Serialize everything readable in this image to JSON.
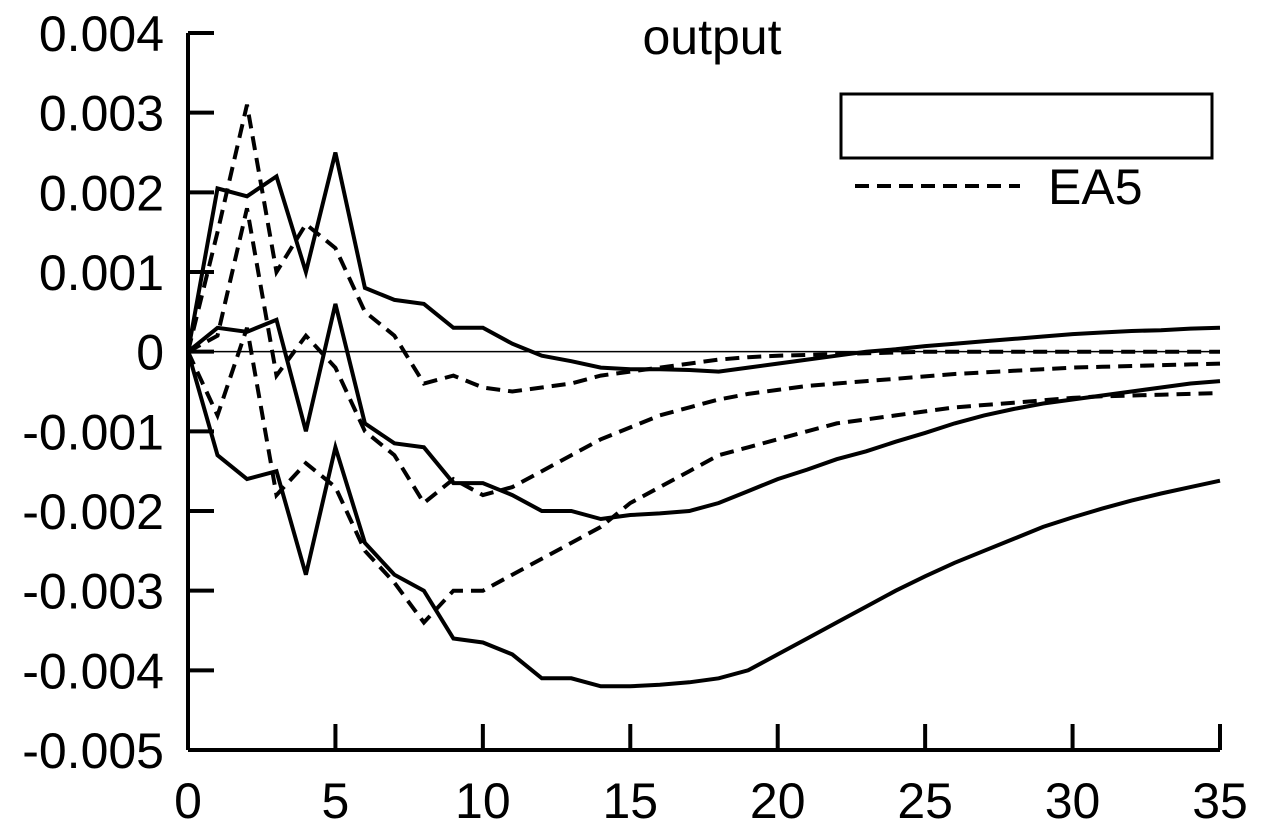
{
  "chart_data": {
    "type": "line",
    "title": "output",
    "xlabel": "",
    "ylabel": "",
    "xlim": [
      0,
      35
    ],
    "ylim": [
      -0.005,
      0.004
    ],
    "x_ticks": [
      0,
      5,
      10,
      15,
      20,
      25,
      30,
      35
    ],
    "x_tick_labels": [
      "0",
      "5",
      "10",
      "15",
      "20",
      "25",
      "30",
      "35"
    ],
    "y_ticks": [
      0.004,
      0.003,
      0.002,
      0.001,
      0,
      -0.001,
      -0.002,
      -0.003,
      -0.004,
      -0.005
    ],
    "y_tick_labels": [
      "0.004",
      "0.003",
      "0.002",
      "0.001",
      "0",
      "-0.001",
      "-0.002",
      "-0.003",
      "-0.004",
      "-0.005"
    ],
    "grid": false,
    "zero_line": true,
    "legend": {
      "position": "top-right",
      "entries": [
        {
          "label": "",
          "style": "solid"
        },
        {
          "label": "EA5",
          "style": "dashed"
        }
      ]
    },
    "series": [
      {
        "style": "solid",
        "x": [
          0,
          1,
          2,
          3,
          4,
          5,
          6,
          7,
          8,
          9,
          10,
          11,
          12,
          13,
          14,
          15,
          16,
          17,
          18,
          19,
          20,
          21,
          22,
          23,
          24,
          25,
          26,
          27,
          28,
          29,
          30,
          31,
          32,
          33,
          34,
          35
        ],
        "y": [
          0,
          0.00205,
          0.00195,
          0.0022,
          0.001,
          0.0025,
          0.0008,
          0.00065,
          0.0006,
          0.0003,
          0.0003,
          0.0001,
          -5e-05,
          -0.00012,
          -0.0002,
          -0.00022,
          -0.00022,
          -0.00023,
          -0.00025,
          -0.0002,
          -0.00015,
          -0.0001,
          -5e-05,
          0,
          3e-05,
          7e-05,
          0.0001,
          0.00013,
          0.00016,
          0.00019,
          0.00022,
          0.00024,
          0.00026,
          0.00027,
          0.00029,
          0.0003
        ]
      },
      {
        "style": "solid",
        "x": [
          0,
          1,
          2,
          3,
          4,
          5,
          6,
          7,
          8,
          9,
          10,
          11,
          12,
          13,
          14,
          15,
          16,
          17,
          18,
          19,
          20,
          21,
          22,
          23,
          24,
          25,
          26,
          27,
          28,
          29,
          30,
          31,
          32,
          33,
          34,
          35
        ],
        "y": [
          0,
          0.0003,
          0.00025,
          0.0004,
          -0.001,
          0.0006,
          -0.0009,
          -0.00115,
          -0.0012,
          -0.00165,
          -0.00165,
          -0.0018,
          -0.002,
          -0.002,
          -0.0021,
          -0.00205,
          -0.00203,
          -0.002,
          -0.0019,
          -0.00175,
          -0.0016,
          -0.00148,
          -0.00135,
          -0.00125,
          -0.00113,
          -0.00102,
          -0.0009,
          -0.0008,
          -0.00072,
          -0.00065,
          -0.0006,
          -0.00055,
          -0.0005,
          -0.00045,
          -0.0004,
          -0.00037
        ]
      },
      {
        "style": "solid",
        "x": [
          0,
          1,
          2,
          3,
          4,
          5,
          6,
          7,
          8,
          9,
          10,
          11,
          12,
          13,
          14,
          15,
          16,
          17,
          18,
          19,
          20,
          21,
          22,
          23,
          24,
          25,
          26,
          27,
          28,
          29,
          30,
          31,
          32,
          33,
          34,
          35
        ],
        "y": [
          0,
          -0.0013,
          -0.0016,
          -0.0015,
          -0.0028,
          -0.0012,
          -0.0024,
          -0.0028,
          -0.003,
          -0.0036,
          -0.00365,
          -0.0038,
          -0.0041,
          -0.0041,
          -0.0042,
          -0.0042,
          -0.00418,
          -0.00415,
          -0.0041,
          -0.004,
          -0.0038,
          -0.0036,
          -0.0034,
          -0.0032,
          -0.003,
          -0.00282,
          -0.00265,
          -0.0025,
          -0.00235,
          -0.0022,
          -0.00208,
          -0.00197,
          -0.00187,
          -0.00178,
          -0.0017,
          -0.00162
        ]
      },
      {
        "style": "dashed",
        "x": [
          0,
          1,
          2,
          3,
          4,
          5,
          6,
          7,
          8,
          9,
          10,
          11,
          12,
          13,
          14,
          15,
          16,
          17,
          18,
          19,
          20,
          21,
          22,
          23,
          24,
          25,
          26,
          27,
          28,
          29,
          30,
          31,
          32,
          33,
          34,
          35
        ],
        "y": [
          0,
          0.0015,
          0.0031,
          0.001,
          0.0016,
          0.0013,
          0.0005,
          0.0002,
          -0.0004,
          -0.0003,
          -0.00045,
          -0.0005,
          -0.00045,
          -0.0004,
          -0.0003,
          -0.00025,
          -0.0002,
          -0.00015,
          -0.0001,
          -7e-05,
          -5e-05,
          -4e-05,
          -3e-05,
          -2e-05,
          -1e-05,
          0,
          0,
          0,
          0,
          0,
          0,
          0,
          0,
          0,
          0,
          0
        ]
      },
      {
        "style": "dashed",
        "x": [
          0,
          1,
          2,
          3,
          4,
          5,
          6,
          7,
          8,
          9,
          10,
          11,
          12,
          13,
          14,
          15,
          16,
          17,
          18,
          19,
          20,
          21,
          22,
          23,
          24,
          25,
          26,
          27,
          28,
          29,
          30,
          31,
          32,
          33,
          34,
          35
        ],
        "y": [
          0,
          0.0002,
          0.0018,
          -0.0003,
          0.0002,
          -0.0002,
          -0.001,
          -0.0013,
          -0.0019,
          -0.0016,
          -0.0018,
          -0.0017,
          -0.0015,
          -0.0013,
          -0.0011,
          -0.00095,
          -0.0008,
          -0.0007,
          -0.0006,
          -0.00053,
          -0.00048,
          -0.00043,
          -0.0004,
          -0.00037,
          -0.00034,
          -0.00031,
          -0.00028,
          -0.00026,
          -0.00024,
          -0.00022,
          -0.0002,
          -0.00019,
          -0.00018,
          -0.00017,
          -0.00016,
          -0.00015
        ]
      },
      {
        "style": "dashed",
        "x": [
          0,
          1,
          2,
          3,
          4,
          5,
          6,
          7,
          8,
          9,
          10,
          11,
          12,
          13,
          14,
          15,
          16,
          17,
          18,
          19,
          20,
          21,
          22,
          23,
          24,
          25,
          26,
          27,
          28,
          29,
          30,
          31,
          32,
          33,
          34,
          35
        ],
        "y": [
          0,
          -0.0008,
          0.0003,
          -0.0018,
          -0.0014,
          -0.0017,
          -0.0025,
          -0.0029,
          -0.0034,
          -0.003,
          -0.003,
          -0.0028,
          -0.0026,
          -0.0024,
          -0.0022,
          -0.0019,
          -0.0017,
          -0.0015,
          -0.0013,
          -0.0012,
          -0.0011,
          -0.001,
          -0.0009,
          -0.00085,
          -0.0008,
          -0.00075,
          -0.0007,
          -0.00067,
          -0.00064,
          -0.00061,
          -0.00058,
          -0.00056,
          -0.00055,
          -0.00054,
          -0.00053,
          -0.00052
        ]
      }
    ]
  }
}
